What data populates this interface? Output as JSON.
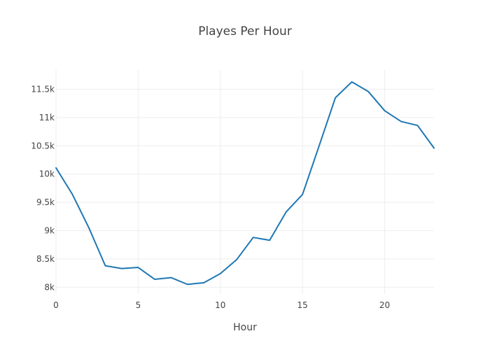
{
  "chart_data": {
    "type": "line",
    "title": "Playes Per Hour",
    "xlabel": "Hour",
    "ylabel": "",
    "xlim": [
      0,
      23
    ],
    "ylim": [
      7880,
      11840
    ],
    "x_ticks": [
      0,
      5,
      10,
      15,
      20
    ],
    "x_tick_labels": [
      "0",
      "5",
      "10",
      "15",
      "20"
    ],
    "y_ticks": [
      8000,
      8500,
      9000,
      9500,
      10000,
      10500,
      11000,
      11500
    ],
    "y_tick_labels": [
      "8k",
      "8.5k",
      "9k",
      "9.5k",
      "10k",
      "10.5k",
      "11k",
      "11.5k"
    ],
    "grid": true,
    "legend": "none",
    "colors": {
      "line": "#1f77b4",
      "grid": "#eeeeee",
      "text": "#444444"
    },
    "series": [
      {
        "x": [
          0,
          1,
          2,
          3,
          4,
          5,
          6,
          7,
          8,
          9,
          10,
          11,
          12,
          13,
          14,
          15,
          16,
          17,
          18,
          19,
          20,
          21,
          22,
          23
        ],
        "values": [
          10110,
          9640,
          9050,
          8380,
          8330,
          8350,
          8140,
          8170,
          8050,
          8080,
          8240,
          8490,
          8880,
          8830,
          9330,
          9640,
          10490,
          11350,
          11630,
          11460,
          11120,
          10930,
          10860,
          10460
        ]
      }
    ]
  }
}
